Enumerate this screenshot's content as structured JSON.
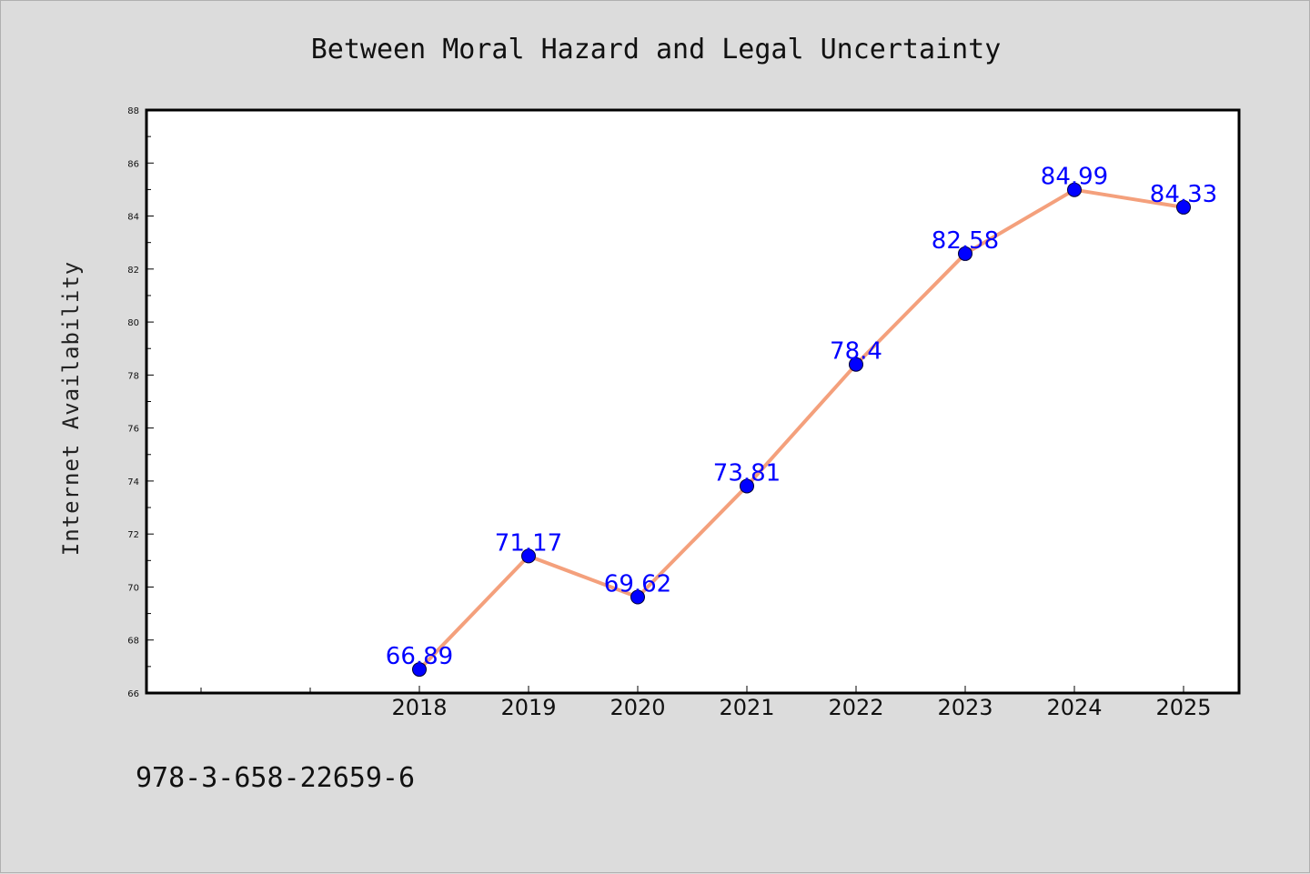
{
  "chart_data": {
    "type": "line",
    "title": "Between Moral Hazard and Legal Uncertainty",
    "xlabel": "",
    "ylabel": "Internet Availability",
    "x": [
      "2018",
      "2019",
      "2020",
      "2021",
      "2022",
      "2023",
      "2024",
      "2025"
    ],
    "values": [
      66.89,
      71.17,
      69.62,
      73.81,
      78.4,
      82.58,
      84.99,
      84.33
    ],
    "data_labels": [
      "66.89",
      "71.17",
      "69.62",
      "73.81",
      "78.4",
      "82.58",
      "84.99",
      "84.33"
    ],
    "ylim": [
      66,
      88
    ],
    "yticks": [
      "66",
      "68",
      "70",
      "72",
      "74",
      "76",
      "78",
      "80",
      "82",
      "84",
      "86",
      "88"
    ],
    "grid": false,
    "line_color": "#f4a07c",
    "marker_color": "#0000ff",
    "label_color": "#0000ff"
  },
  "footer": {
    "isbn": "978-3-658-22659-6"
  }
}
